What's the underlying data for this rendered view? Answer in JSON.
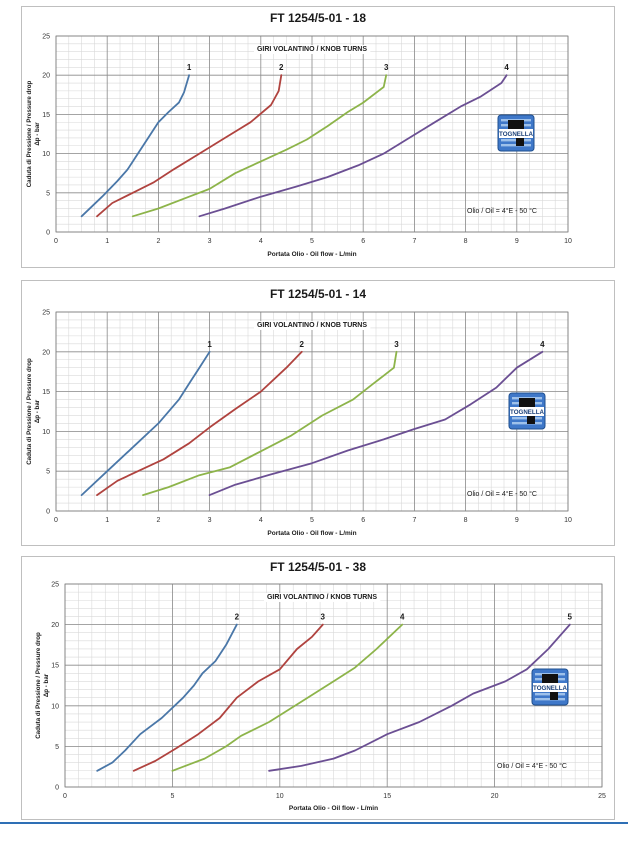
{
  "chart_data": [
    {
      "type": "line",
      "title": "FT 1254/5-01  - 18",
      "subtitle": "GIRI VOLANTINO / KNOB TURNS",
      "xlabel": "Portata Olio - Oil flow -  L/min",
      "ylabel": "Caduta di Pressione / Pressure drop",
      "ylabel2": "Δp - bar",
      "xlim": [
        0,
        10
      ],
      "ylim": [
        0,
        25
      ],
      "xticks": [
        "0",
        "1",
        "2",
        "3",
        "4",
        "5",
        "6",
        "7",
        "8",
        "9",
        "10"
      ],
      "yticks": [
        "0",
        "5",
        "10",
        "15",
        "20",
        "25"
      ],
      "grid": true,
      "annotation": "Olio / Oil = 4°E - 50 °C",
      "logo": "TOGNELLA",
      "series": [
        {
          "name": "1",
          "color": "#4a77a8",
          "points": [
            [
              0.5,
              2
            ],
            [
              0.9,
              4.5
            ],
            [
              1.2,
              6.5
            ],
            [
              1.4,
              8
            ],
            [
              1.6,
              10
            ],
            [
              1.8,
              12
            ],
            [
              2.0,
              14
            ],
            [
              2.2,
              15.3
            ],
            [
              2.4,
              16.5
            ],
            [
              2.5,
              17.8
            ],
            [
              2.6,
              20
            ]
          ]
        },
        {
          "name": "2",
          "color": "#b0433f",
          "points": [
            [
              0.8,
              2
            ],
            [
              1.1,
              3.7
            ],
            [
              1.5,
              5
            ],
            [
              1.9,
              6.3
            ],
            [
              2.3,
              8
            ],
            [
              2.8,
              10
            ],
            [
              3.3,
              12
            ],
            [
              3.8,
              14
            ],
            [
              4.2,
              16.2
            ],
            [
              4.35,
              18
            ],
            [
              4.4,
              20
            ]
          ]
        },
        {
          "name": "3",
          "color": "#8db44a",
          "points": [
            [
              1.5,
              2
            ],
            [
              2.0,
              3
            ],
            [
              2.6,
              4.5
            ],
            [
              3.0,
              5.5
            ],
            [
              3.5,
              7.5
            ],
            [
              4.0,
              9
            ],
            [
              4.5,
              10.5
            ],
            [
              4.9,
              11.8
            ],
            [
              5.3,
              13.5
            ],
            [
              5.7,
              15.3
            ],
            [
              6.0,
              16.5
            ],
            [
              6.4,
              18.5
            ],
            [
              6.45,
              20
            ]
          ]
        },
        {
          "name": "4",
          "color": "#6b4f93",
          "points": [
            [
              2.8,
              2
            ],
            [
              3.3,
              3
            ],
            [
              4.0,
              4.5
            ],
            [
              4.7,
              5.8
            ],
            [
              5.3,
              7
            ],
            [
              5.9,
              8.5
            ],
            [
              6.4,
              10
            ],
            [
              6.9,
              12
            ],
            [
              7.4,
              14
            ],
            [
              7.9,
              16
            ],
            [
              8.3,
              17.3
            ],
            [
              8.7,
              19
            ],
            [
              8.8,
              20
            ]
          ]
        }
      ]
    },
    {
      "type": "line",
      "title": "FT 1254/5-01 - 14",
      "subtitle": "GIRI VOLANTINO / KNOB TURNS",
      "xlabel": "Portata Olio - Oil flow -  L/min",
      "ylabel": "Caduta di Pressione / Pressure drop",
      "ylabel2": "Δp - bar",
      "xlim": [
        0,
        10
      ],
      "ylim": [
        0,
        25
      ],
      "xticks": [
        "0",
        "1",
        "2",
        "3",
        "4",
        "5",
        "6",
        "7",
        "8",
        "9",
        "10"
      ],
      "yticks": [
        "0",
        "5",
        "10",
        "15",
        "20",
        "25"
      ],
      "grid": true,
      "annotation": "Olio / Oil = 4°E - 50 °C",
      "logo": "TOGNELLA",
      "series": [
        {
          "name": "1",
          "color": "#4a77a8",
          "points": [
            [
              0.5,
              2
            ],
            [
              1.0,
              5
            ],
            [
              1.5,
              8
            ],
            [
              2.0,
              11
            ],
            [
              2.4,
              14
            ],
            [
              2.6,
              16
            ],
            [
              2.8,
              18
            ],
            [
              3.0,
              20
            ]
          ]
        },
        {
          "name": "2",
          "color": "#b0433f",
          "points": [
            [
              0.8,
              2
            ],
            [
              1.2,
              3.8
            ],
            [
              1.6,
              5
            ],
            [
              2.1,
              6.5
            ],
            [
              2.6,
              8.5
            ],
            [
              3.0,
              10.5
            ],
            [
              3.5,
              12.8
            ],
            [
              4.0,
              15
            ],
            [
              4.5,
              18
            ],
            [
              4.8,
              20
            ]
          ]
        },
        {
          "name": "3",
          "color": "#8db44a",
          "points": [
            [
              1.7,
              2
            ],
            [
              2.2,
              3
            ],
            [
              2.8,
              4.5
            ],
            [
              3.4,
              5.5
            ],
            [
              4.0,
              7.5
            ],
            [
              4.6,
              9.5
            ],
            [
              5.2,
              12
            ],
            [
              5.8,
              14
            ],
            [
              6.2,
              16
            ],
            [
              6.6,
              18
            ],
            [
              6.65,
              20
            ]
          ]
        },
        {
          "name": "4",
          "color": "#6b4f93",
          "points": [
            [
              3.0,
              2
            ],
            [
              3.5,
              3.3
            ],
            [
              4.2,
              4.6
            ],
            [
              5.0,
              6
            ],
            [
              5.7,
              7.6
            ],
            [
              6.4,
              9
            ],
            [
              7.0,
              10.3
            ],
            [
              7.6,
              11.5
            ],
            [
              8.1,
              13.4
            ],
            [
              8.6,
              15.5
            ],
            [
              9.0,
              18
            ],
            [
              9.5,
              20
            ]
          ]
        }
      ]
    },
    {
      "type": "line",
      "title": "FT 1254/5-01  - 38",
      "subtitle": "GIRI VOLANTINO / KNOB TURNS",
      "xlabel": "Portata Olio - Oil flow -  L/min",
      "ylabel": "Caduta di Pressione / Pressure drop",
      "ylabel2": "Δp - bar",
      "xlim": [
        0,
        25
      ],
      "ylim": [
        0,
        25
      ],
      "xticks": [
        "0",
        "5",
        "10",
        "15",
        "20",
        "25"
      ],
      "yticks": [
        "0",
        "5",
        "10",
        "15",
        "20",
        "25"
      ],
      "grid": true,
      "annotation": "Olio / Oil = 4°E - 50 °C",
      "logo": "TOGNELLA",
      "series": [
        {
          "name": "2",
          "color": "#4a77a8",
          "points": [
            [
              1.5,
              2
            ],
            [
              2.2,
              3
            ],
            [
              2.8,
              4.5
            ],
            [
              3.5,
              6.5
            ],
            [
              4.5,
              8.5
            ],
            [
              5.5,
              11
            ],
            [
              6.0,
              12.5
            ],
            [
              6.4,
              14
            ],
            [
              7.0,
              15.5
            ],
            [
              7.5,
              17.5
            ],
            [
              8.0,
              20
            ]
          ]
        },
        {
          "name": "3",
          "color": "#b0433f",
          "points": [
            [
              3.2,
              2
            ],
            [
              4.2,
              3.2
            ],
            [
              5.2,
              4.8
            ],
            [
              6.2,
              6.5
            ],
            [
              7.2,
              8.5
            ],
            [
              8.0,
              11
            ],
            [
              9.0,
              13
            ],
            [
              10.0,
              14.5
            ],
            [
              10.8,
              17
            ],
            [
              11.5,
              18.5
            ],
            [
              12.0,
              20
            ]
          ]
        },
        {
          "name": "4",
          "color": "#8db44a",
          "points": [
            [
              5.0,
              2
            ],
            [
              6.5,
              3.5
            ],
            [
              7.5,
              5
            ],
            [
              8.2,
              6.3
            ],
            [
              9.5,
              8
            ],
            [
              11.0,
              10.5
            ],
            [
              12.5,
              13
            ],
            [
              13.5,
              14.7
            ],
            [
              14.5,
              17
            ],
            [
              15.7,
              20
            ]
          ]
        },
        {
          "name": "5",
          "color": "#6b4f93",
          "points": [
            [
              9.5,
              2
            ],
            [
              11.0,
              2.6
            ],
            [
              12.5,
              3.5
            ],
            [
              13.5,
              4.5
            ],
            [
              15.0,
              6.5
            ],
            [
              16.5,
              8
            ],
            [
              18.0,
              10
            ],
            [
              19.0,
              11.5
            ],
            [
              20.5,
              13
            ],
            [
              21.5,
              14.5
            ],
            [
              22.5,
              17
            ],
            [
              23.5,
              20
            ]
          ]
        }
      ]
    }
  ]
}
